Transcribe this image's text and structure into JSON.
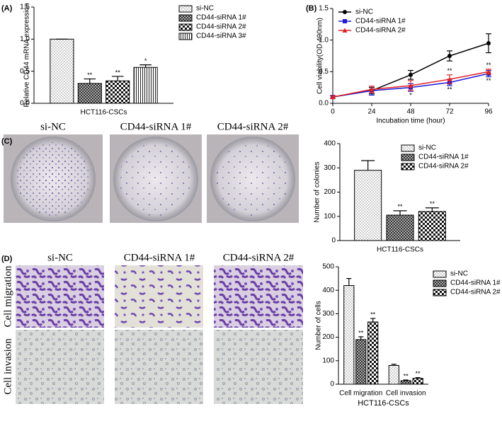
{
  "chart_data": [
    {
      "type": "bar",
      "label": "(A)",
      "ylabel": "Relative CD44 mRNA expression",
      "categories": [
        "HCT116-CSCs"
      ],
      "series": [
        {
          "name": "si-NC",
          "color": "#000000",
          "pattern": "dots",
          "values": [
            1.0
          ],
          "errors": [
            0
          ],
          "annotations": [
            null
          ]
        },
        {
          "name": "CD44-siRNA 1#",
          "color": "#000000",
          "pattern": "fine-checker",
          "values": [
            0.31
          ],
          "errors": [
            0.07
          ],
          "annotations": [
            "**"
          ]
        },
        {
          "name": "CD44-siRNA 2#",
          "color": "#000000",
          "pattern": "checker",
          "values": [
            0.35
          ],
          "errors": [
            0.07
          ],
          "annotations": [
            "**"
          ]
        },
        {
          "name": "CD44-siRNA 3#",
          "color": "#000000",
          "pattern": "vstripes",
          "values": [
            0.56
          ],
          "errors": [
            0.04
          ],
          "annotations": [
            "*"
          ]
        }
      ],
      "ylim": [
        0,
        1.5
      ],
      "yticks": [
        {
          "value": 0,
          "label": "0.0"
        },
        0.5,
        {
          "value": 1,
          "label": "1.0"
        },
        1.5
      ],
      "legend": "outside-right"
    },
    {
      "type": "line",
      "label": "(B)",
      "xlabel": "Incubation time (hour)",
      "ylabel": "Cell viability(OD 490nm)",
      "x": [
        0,
        24,
        48,
        72,
        96
      ],
      "series": [
        {
          "name": "si-NC",
          "color": "#000000",
          "marker": "circle",
          "values": [
            0.1,
            0.2,
            0.45,
            0.75,
            0.95
          ],
          "errors": [
            0.02,
            0.05,
            0.07,
            0.08,
            0.15
          ],
          "annotations": [
            null,
            null,
            null,
            null,
            null
          ],
          "annotation_position": "above"
        },
        {
          "name": "CD44-siRNA 1#",
          "color": "#1a1adb",
          "marker": "square",
          "values": [
            0.1,
            0.2,
            0.25,
            0.33,
            0.47
          ],
          "errors": [
            0.02,
            0.07,
            0.06,
            0.05,
            0.05
          ],
          "annotations": [
            null,
            null,
            "*",
            "**",
            "**"
          ],
          "annotation_position": "below"
        },
        {
          "name": "CD44-siRNA 2#",
          "color": "#e02020",
          "marker": "triangle",
          "values": [
            0.1,
            0.22,
            0.28,
            0.38,
            0.5
          ],
          "errors": [
            0.02,
            0.05,
            0.08,
            0.07,
            0.04
          ],
          "annotations": [
            null,
            null,
            null,
            "**",
            "**"
          ],
          "annotation_position": "above"
        }
      ],
      "xlim": [
        0,
        96
      ],
      "xticks": [
        0,
        24,
        48,
        72,
        96
      ],
      "ylim": [
        0,
        1.5
      ],
      "yticks": [
        {
          "value": 0,
          "label": "0.0"
        },
        0.5,
        {
          "value": 1,
          "label": "1.0"
        },
        1.5
      ],
      "legend": "top-left"
    },
    {
      "type": "bar",
      "label": "(C)",
      "ylabel": "Number of colonies",
      "categories": [
        "HCT116-CSCs"
      ],
      "series": [
        {
          "name": "si-NC",
          "color": "#000000",
          "pattern": "dots",
          "values": [
            290
          ],
          "errors": [
            40
          ],
          "annotations": [
            null
          ]
        },
        {
          "name": "CD44-siRNA 1#",
          "color": "#000000",
          "pattern": "fine-checker",
          "values": [
            105
          ],
          "errors": [
            18
          ],
          "annotations": [
            "**"
          ]
        },
        {
          "name": "CD44-siRNA 2#",
          "color": "#000000",
          "pattern": "checker",
          "values": [
            120
          ],
          "errors": [
            15
          ],
          "annotations": [
            "**"
          ]
        }
      ],
      "ylim": [
        0,
        400
      ],
      "yticks": [
        0,
        100,
        200,
        300,
        400
      ],
      "legend": "top-right"
    },
    {
      "type": "bar",
      "label": "(D)",
      "ylabel": "Number of cells",
      "xlabel": "HCT116-CSCs",
      "categories": [
        "Cell migration",
        "Cell invasion"
      ],
      "series": [
        {
          "name": "si-NC",
          "color": "#000000",
          "pattern": "dots",
          "values": [
            420,
            80
          ],
          "errors": [
            30,
            5
          ],
          "annotations": [
            null,
            null
          ]
        },
        {
          "name": "CD44-siRNA 1#",
          "color": "#000000",
          "pattern": "fine-checker",
          "values": [
            190,
            15
          ],
          "errors": [
            12,
            3
          ],
          "annotations": [
            "**",
            "**"
          ]
        },
        {
          "name": "CD44-siRNA 2#",
          "color": "#000000",
          "pattern": "checker",
          "values": [
            265,
            25
          ],
          "errors": [
            15,
            3
          ],
          "annotations": [
            "**",
            "**"
          ]
        }
      ],
      "ylim": [
        0,
        500
      ],
      "yticks": [
        0,
        100,
        200,
        300,
        400,
        500
      ],
      "legend": "outside-right"
    }
  ],
  "photo_panels": [
    {
      "columns": [
        "si-NC",
        "CD44-siRNA 1#",
        "CD44-siRNA 2#"
      ]
    },
    {
      "columns": [
        "si-NC",
        "CD44-siRNA 1#",
        "CD44-siRNA 2#"
      ],
      "rows": [
        "Cell migration",
        "Cell invasion"
      ]
    }
  ]
}
